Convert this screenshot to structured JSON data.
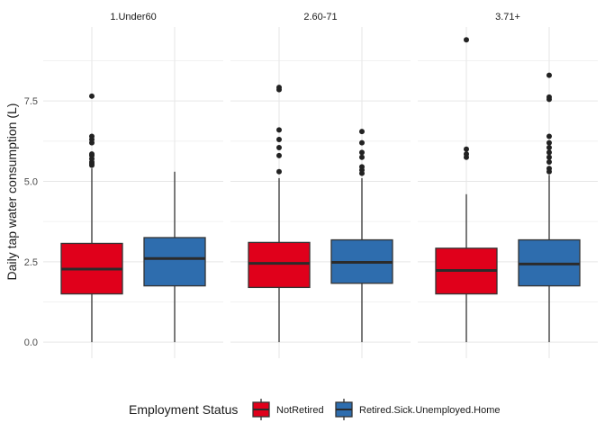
{
  "chart_data": {
    "type": "boxplot",
    "ylabel": "Daily tap water consumption (L)",
    "xlabel": "",
    "ylim": [
      -0.5,
      9.8
    ],
    "yticks": [
      0.0,
      2.5,
      5.0,
      7.5
    ],
    "ytick_labels": [
      "0.0",
      "2.5",
      "5.0",
      "7.5"
    ],
    "grid": true,
    "legend": {
      "title": "Employment Status",
      "position": "bottom",
      "items": [
        {
          "label": "NotRetired",
          "color": "#E0001B"
        },
        {
          "label": "Retired.Sick.Unemployed.Home",
          "color": "#2E6DAE"
        }
      ]
    },
    "facets": [
      {
        "title": "1.Under60",
        "boxes": [
          {
            "group": "NotRetired",
            "q1": 1.5,
            "median": 2.27,
            "q3": 3.07,
            "whisker_low": 0.0,
            "whisker_high": 5.4,
            "outliers": [
              5.5,
              5.55,
              5.6,
              5.7,
              5.8,
              5.85,
              6.2,
              6.3,
              6.4,
              7.65
            ]
          },
          {
            "group": "Retired.Sick.Unemployed.Home",
            "q1": 1.75,
            "median": 2.6,
            "q3": 3.25,
            "whisker_low": 0.0,
            "whisker_high": 5.3,
            "outliers": []
          }
        ]
      },
      {
        "title": "2.60-71",
        "boxes": [
          {
            "group": "NotRetired",
            "q1": 1.7,
            "median": 2.45,
            "q3": 3.1,
            "whisker_low": 0.0,
            "whisker_high": 5.1,
            "outliers": [
              5.3,
              5.8,
              6.05,
              6.3,
              6.6,
              7.85,
              7.92
            ]
          },
          {
            "group": "Retired.Sick.Unemployed.Home",
            "q1": 1.83,
            "median": 2.48,
            "q3": 3.18,
            "whisker_low": 0.0,
            "whisker_high": 5.1,
            "outliers": [
              5.25,
              5.35,
              5.45,
              5.75,
              5.9,
              6.2,
              6.55
            ]
          }
        ]
      },
      {
        "title": "3.71+",
        "boxes": [
          {
            "group": "NotRetired",
            "q1": 1.5,
            "median": 2.23,
            "q3": 2.92,
            "whisker_low": 0.0,
            "whisker_high": 4.6,
            "outliers": [
              5.75,
              5.85,
              6.0,
              9.4
            ]
          },
          {
            "group": "Retired.Sick.Unemployed.Home",
            "q1": 1.75,
            "median": 2.43,
            "q3": 3.18,
            "whisker_low": 0.0,
            "whisker_high": 5.2,
            "outliers": [
              5.3,
              5.4,
              5.6,
              5.75,
              5.9,
              6.05,
              6.2,
              6.4,
              7.55,
              7.62,
              8.3
            ]
          }
        ]
      }
    ]
  }
}
